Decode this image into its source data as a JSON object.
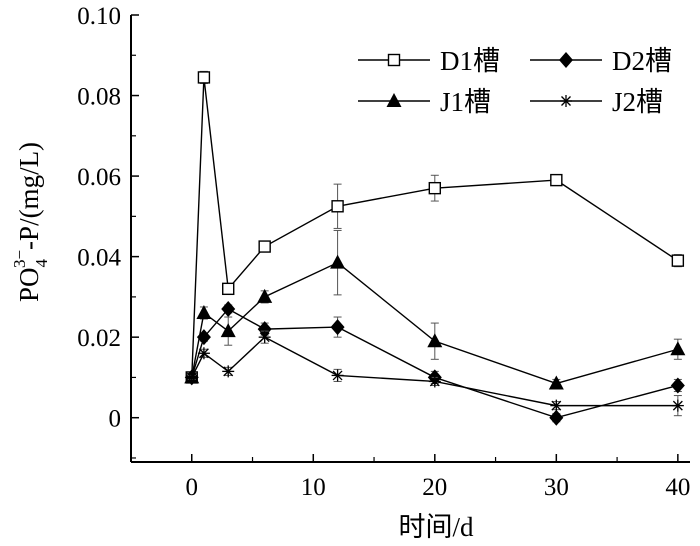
{
  "chart_data": {
    "type": "line",
    "xlabel": "时间/d",
    "ylabel": "PO43−-P/(mg/L)",
    "xlim": [
      -5,
      41
    ],
    "ylim": [
      -0.011,
      0.1
    ],
    "xticks": [
      0,
      10,
      20,
      30,
      40
    ],
    "xtick_labels": [
      "0",
      "10",
      "20",
      "30",
      "40"
    ],
    "yticks": [
      0,
      0.02,
      0.04,
      0.06,
      0.08,
      0.1
    ],
    "ytick_labels": [
      "0",
      "0.02",
      "0.04",
      "0.06",
      "0.08",
      "0.10"
    ],
    "grid": false,
    "legend_position": "top-right",
    "series": [
      {
        "name": "D1槽",
        "marker": "open-square",
        "x": [
          0,
          1,
          3,
          6,
          12,
          20,
          30,
          40
        ],
        "y": [
          0.01,
          0.0845,
          0.032,
          0.0425,
          0.0525,
          0.057,
          0.059,
          0.039
        ],
        "err": [
          0.0005,
          0.0015,
          0.001,
          0.001,
          0.0055,
          0.0032,
          0.0008,
          0.0015
        ]
      },
      {
        "name": "D2槽",
        "marker": "filled-diamond",
        "x": [
          0,
          1,
          3,
          6,
          12,
          20,
          30,
          40
        ],
        "y": [
          0.01,
          0.02,
          0.027,
          0.022,
          0.0225,
          0.01,
          0.0,
          0.008
        ],
        "err": [
          0.0005,
          0.001,
          0.001,
          0.0015,
          0.0025,
          0.0015,
          0.001,
          0.0015
        ]
      },
      {
        "name": "J1槽",
        "marker": "filled-triangle",
        "x": [
          0,
          1,
          3,
          6,
          12,
          20,
          30,
          40
        ],
        "y": [
          0.01,
          0.026,
          0.0215,
          0.03,
          0.0385,
          0.019,
          0.0085,
          0.017
        ],
        "err": [
          0.0005,
          0.0015,
          0.0035,
          0.0015,
          0.008,
          0.0045,
          0.001,
          0.0025
        ]
      },
      {
        "name": "J2槽",
        "marker": "asterisk",
        "x": [
          0,
          1,
          3,
          6,
          12,
          20,
          30,
          40
        ],
        "y": [
          0.01,
          0.016,
          0.0115,
          0.02,
          0.0105,
          0.009,
          0.003,
          0.003
        ],
        "err": [
          0.0005,
          0.001,
          0.001,
          0.0015,
          0.0015,
          0.001,
          0.001,
          0.0025
        ]
      }
    ]
  }
}
